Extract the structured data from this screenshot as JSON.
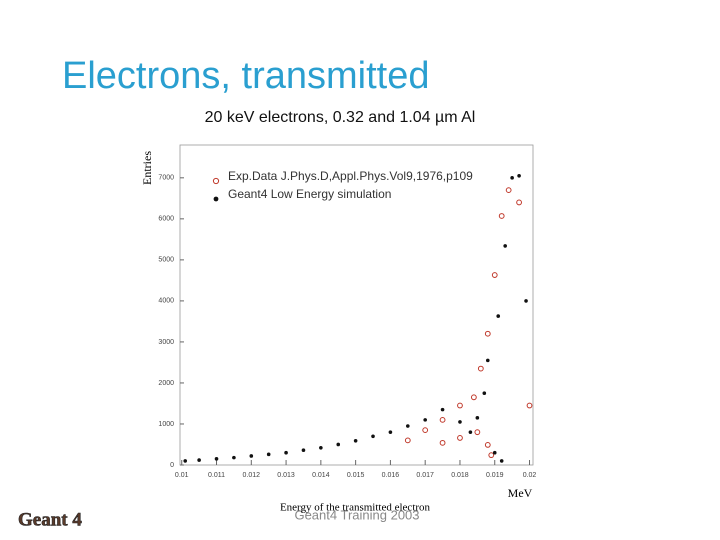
{
  "slide": {
    "title": "Electrons, transmitted",
    "subtitle": "20 keV electrons, 0.32 and 1.04 µm Al",
    "footer": "Geant4 Training 2003",
    "logo": "Geant 4"
  },
  "chart_data": {
    "type": "scatter",
    "y_label": "Entries",
    "x_label": "Energy of the transmitted electron",
    "x_unit": "MeV",
    "xlim": [
      0.00995,
      0.0201
    ],
    "ylim": [
      0,
      7800
    ],
    "xticks": [
      0.01,
      0.011,
      0.012,
      0.013,
      0.014,
      0.015,
      0.016,
      0.017,
      0.018,
      0.019,
      0.02
    ],
    "yticks": [
      0,
      1000,
      2000,
      3000,
      4000,
      5000,
      6000,
      7000
    ],
    "series": [
      {
        "name": "Exp.Data J.Phys.D,Appl.Phys.Vol9,1976,p109",
        "color": "#c0392b",
        "marker": "circle",
        "x": [
          0.0165,
          0.017,
          0.0175,
          0.0175,
          0.018,
          0.018,
          0.0184,
          0.0185,
          0.0186,
          0.0188,
          0.0188,
          0.0189,
          0.019,
          0.0192,
          0.0194,
          0.0197,
          0.02
        ],
        "values": [
          600,
          850,
          540,
          1100,
          660,
          1450,
          1650,
          800,
          2350,
          3200,
          490,
          240,
          4630,
          6070,
          6700,
          6400,
          1450
        ]
      },
      {
        "name": "Geant4 Low Energy simulation",
        "color": "#111111",
        "marker": "dot",
        "x": [
          0.0101,
          0.0105,
          0.011,
          0.0115,
          0.012,
          0.0125,
          0.013,
          0.0135,
          0.014,
          0.0145,
          0.015,
          0.0155,
          0.016,
          0.0165,
          0.017,
          0.0175,
          0.018,
          0.0183,
          0.0185,
          0.0187,
          0.0188,
          0.019,
          0.0191,
          0.0192,
          0.0193,
          0.0195,
          0.0197,
          0.0199
        ],
        "values": [
          100,
          120,
          150,
          180,
          220,
          260,
          300,
          360,
          420,
          500,
          590,
          700,
          800,
          950,
          1100,
          1350,
          1050,
          800,
          1150,
          1750,
          2550,
          300,
          3630,
          100,
          5340,
          7000,
          7050,
          4000
        ]
      }
    ]
  }
}
